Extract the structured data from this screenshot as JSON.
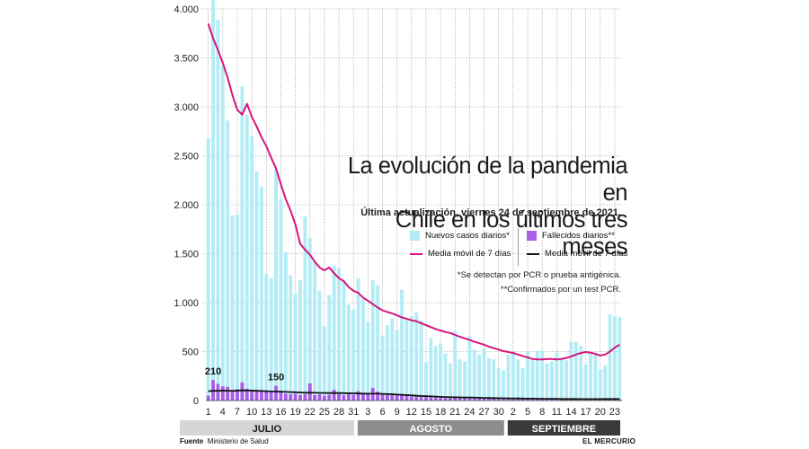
{
  "chart_data": {
    "type": "bar",
    "title_line1": "La evolución de la pandemia en",
    "title_line2": "Chile en los últimos tres meses",
    "updated": "Última actualización, viernes 24 de septiembre de 2021.",
    "ylim": [
      0,
      4000
    ],
    "y_ticks": [
      0,
      500,
      1000,
      1500,
      2000,
      2500,
      3000,
      3500,
      4000
    ],
    "y_tick_labels": [
      "0",
      "500",
      "1.000",
      "1.500",
      "2.000",
      "2.500",
      "3.000",
      "3.500",
      "4.000"
    ],
    "x_tick_labels": [
      "1",
      "4",
      "7",
      "10",
      "13",
      "16",
      "19",
      "22",
      "25",
      "28",
      "31",
      "3",
      "6",
      "9",
      "12",
      "15",
      "18",
      "21",
      "24",
      "27",
      "30",
      "2",
      "5",
      "8",
      "11",
      "14",
      "17",
      "20",
      "23"
    ],
    "months": [
      {
        "label": "JULIO",
        "start_day": 1,
        "end_day": 31,
        "color": "#d6d6d6",
        "text_color": "#1a1a1a"
      },
      {
        "label": "AGOSTO",
        "start_day": 32,
        "end_day": 62,
        "color": "#8c8c8c",
        "text_color": "#ffffff"
      },
      {
        "label": "SEPTIEMBRE",
        "start_day": 63,
        "end_day": 86,
        "color": "#3a3a3a",
        "text_color": "#ffffff"
      }
    ],
    "series": [
      {
        "name": "Nuevos casos diarios*",
        "type": "bar",
        "color": "#b3ecf5",
        "values": [
          2680,
          4130,
          3890,
          3420,
          2860,
          1890,
          1900,
          3210,
          2920,
          2700,
          2340,
          2180,
          1290,
          1250,
          2360,
          2060,
          1520,
          1280,
          1090,
          1230,
          1880,
          1660,
          1420,
          1120,
          760,
          1080,
          1380,
          1360,
          1220,
          980,
          930,
          1250,
          1030,
          800,
          1230,
          1180,
          660,
          770,
          840,
          720,
          1130,
          840,
          860,
          900,
          820,
          390,
          640,
          560,
          580,
          480,
          380,
          710,
          420,
          400,
          660,
          520,
          470,
          540,
          430,
          420,
          330,
          310,
          470,
          490,
          420,
          330,
          500,
          410,
          510,
          510,
          380,
          400,
          490,
          420,
          410,
          600,
          600,
          560,
          370,
          480,
          490,
          320,
          360,
          880,
          860,
          850
        ]
      },
      {
        "name": "Media móvil de 7 días",
        "type": "line",
        "color": "#d6157e",
        "values": [
          3850,
          3700,
          3580,
          3450,
          3300,
          3120,
          2970,
          2920,
          3030,
          2900,
          2800,
          2690,
          2600,
          2480,
          2370,
          2210,
          2060,
          1940,
          1800,
          1600,
          1540,
          1490,
          1420,
          1360,
          1330,
          1360,
          1300,
          1250,
          1220,
          1160,
          1120,
          1100,
          1050,
          1020,
          985,
          950,
          920,
          905,
          890,
          870,
          850,
          835,
          820,
          810,
          790,
          770,
          750,
          730,
          715,
          700,
          690,
          670,
          650,
          635,
          620,
          600,
          585,
          570,
          550,
          535,
          520,
          505,
          495,
          485,
          470,
          455,
          440,
          425,
          420,
          420,
          425,
          425,
          420,
          425,
          435,
          450,
          470,
          485,
          495,
          490,
          475,
          460,
          470,
          500,
          540,
          570
        ]
      },
      {
        "name": "Fallecidos diarios**",
        "type": "bar",
        "color": "#a85fe6",
        "values": [
          50,
          210,
          170,
          145,
          140,
          100,
          115,
          185,
          120,
          110,
          108,
          102,
          98,
          85,
          150,
          90,
          70,
          65,
          68,
          58,
          65,
          175,
          55,
          62,
          48,
          58,
          110,
          65,
          55,
          70,
          58,
          95,
          68,
          65,
          130,
          90,
          70,
          55,
          60,
          58,
          50,
          55,
          40,
          38,
          35,
          35,
          32,
          30,
          28,
          25,
          25,
          32,
          28,
          22,
          20,
          18,
          22,
          20,
          18,
          22,
          16,
          15,
          14,
          14,
          16,
          14,
          14,
          12,
          12,
          12,
          14,
          12,
          11,
          10,
          12,
          13,
          11,
          10,
          10,
          12,
          10,
          10,
          10,
          12,
          12,
          10
        ]
      },
      {
        "name": "Media móvil de 7 días",
        "type": "line",
        "color": "#111111",
        "values": [
          95,
          98,
          100,
          101,
          100,
          98,
          101,
          104,
          103,
          101,
          99,
          97,
          95,
          93,
          92,
          90,
          88,
          86,
          84,
          82,
          80,
          80,
          79,
          78,
          77,
          76,
          77,
          76,
          75,
          74,
          73,
          72,
          71,
          70,
          70,
          70,
          68,
          66,
          64,
          61,
          58,
          55,
          52,
          49,
          46,
          44,
          42,
          40,
          38,
          36,
          34,
          33,
          32,
          31,
          30,
          29,
          28,
          27,
          26,
          25,
          24,
          23,
          22,
          22,
          21,
          20,
          19,
          19,
          18,
          18,
          17,
          17,
          17,
          16,
          16,
          16,
          16,
          15,
          15,
          15,
          15,
          15,
          16,
          16,
          16,
          16
        ]
      }
    ],
    "annotations": [
      {
        "day": 2,
        "series": "Fallecidos diarios**",
        "value": 210,
        "text": "210"
      },
      {
        "day": 15,
        "series": "Fallecidos diarios**",
        "value": 150,
        "text": "150"
      }
    ],
    "notes": [
      "*Se detectan por PCR o prueba antigénica.",
      "**Confirmados por un test PCR."
    ],
    "source_label": "Fuente",
    "source": "Ministerio de Salud",
    "credit": "EL MERCURIO"
  }
}
